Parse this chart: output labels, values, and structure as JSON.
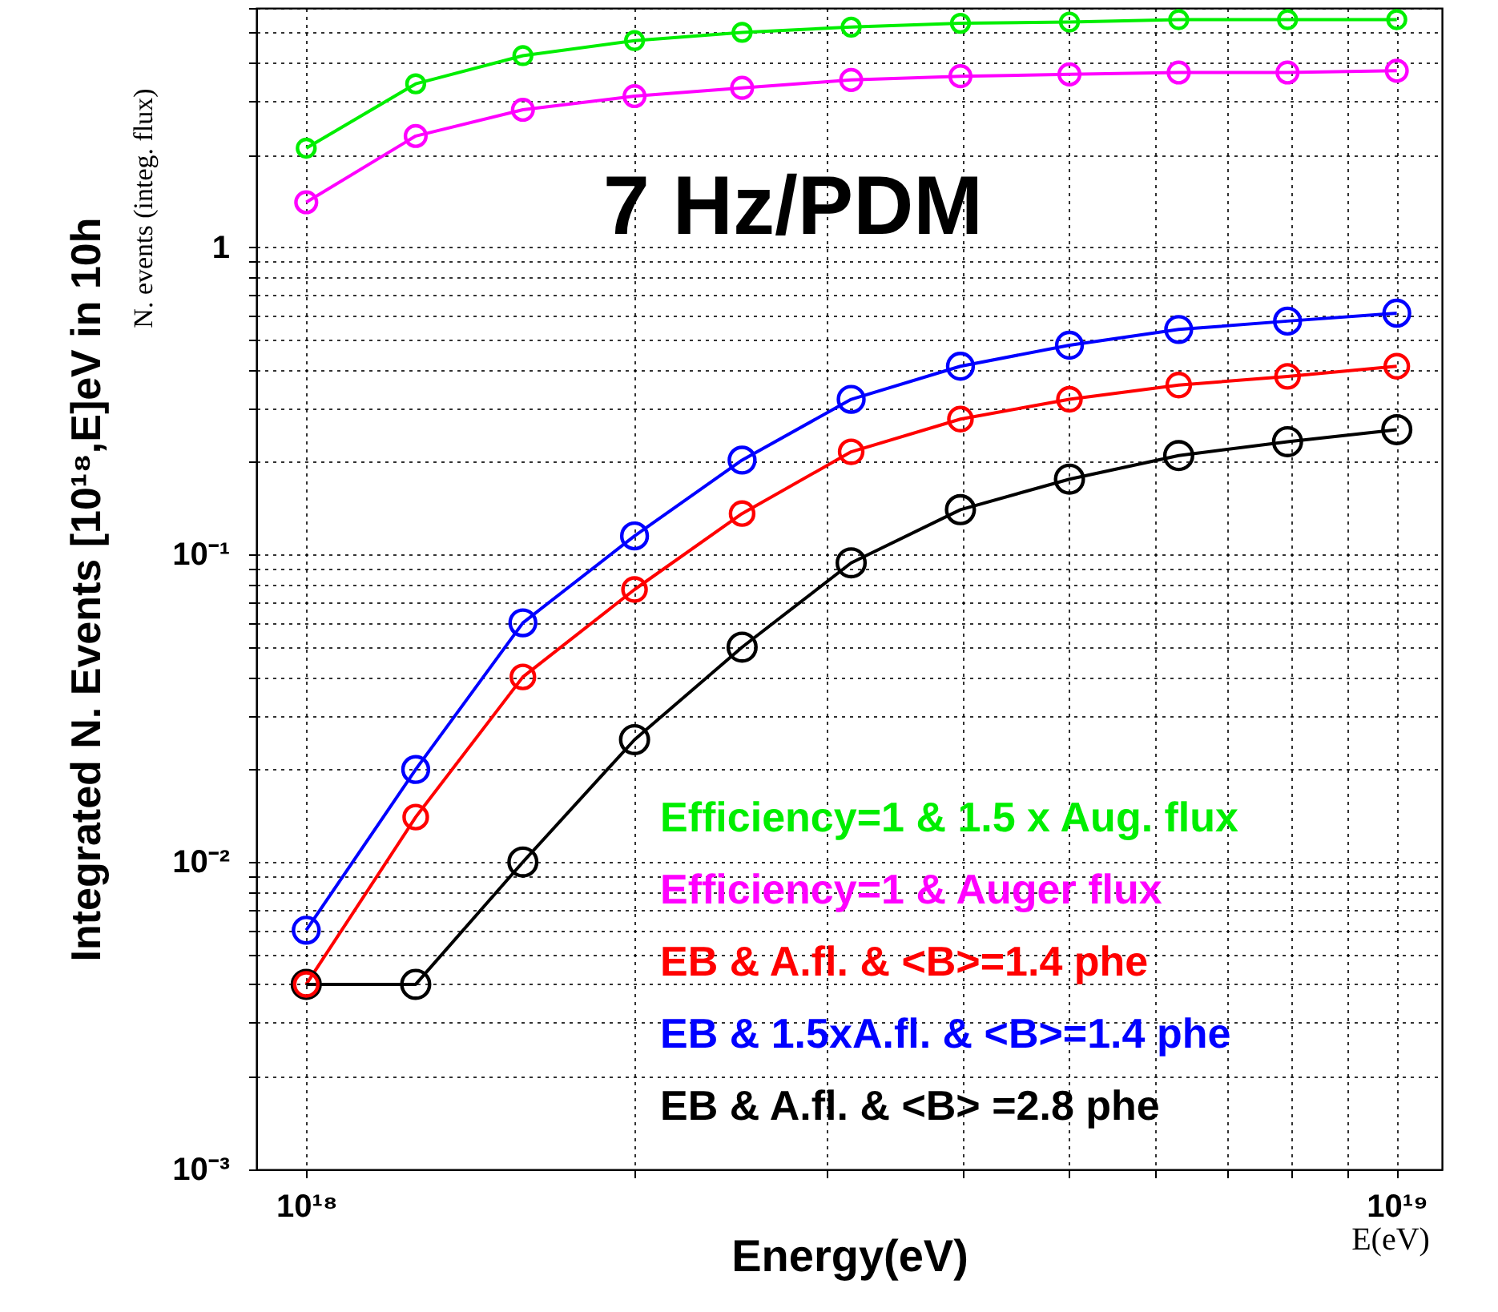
{
  "chart_data": {
    "type": "line",
    "xlabel": "Energy(eV)",
    "ylabel": "Integrated N. Events [10¹⁸,E]eV in 10h",
    "annotations": [
      "7 Hz/PDM",
      "N. events (integ. flux)",
      "E(eV)"
    ],
    "x": [
      1e+18,
      1.26e+18,
      1.58e+18,
      2e+18,
      2.51e+18,
      3.16e+18,
      3.98e+18,
      5.01e+18,
      6.31e+18,
      7.94e+18,
      1e+19
    ],
    "series": [
      {
        "name": "Efficiency=1 & 1.5 x Aug. flux",
        "color": "#00ee00",
        "values": [
          2.1,
          3.4,
          4.2,
          4.7,
          5.0,
          5.2,
          5.35,
          5.4,
          5.5,
          5.5,
          5.5
        ]
      },
      {
        "name": "Efficiency=1 & Auger flux",
        "color": "#ff00ff",
        "values": [
          1.4,
          2.3,
          2.8,
          3.1,
          3.3,
          3.5,
          3.6,
          3.65,
          3.7,
          3.7,
          3.75
        ]
      },
      {
        "name": "EB & A.fl. & <B>=1.4 phe",
        "color": "#ff0000",
        "values": [
          0.004,
          0.014,
          0.04,
          0.077,
          0.136,
          0.216,
          0.276,
          0.32,
          0.356,
          0.38,
          0.41
        ]
      },
      {
        "name": "EB & 1.5xA.fl. & <B>=1.4 phe",
        "color": "#0000ff",
        "values": [
          0.006,
          0.02,
          0.06,
          0.115,
          0.203,
          0.32,
          0.41,
          0.48,
          0.54,
          0.575,
          0.61
        ]
      },
      {
        "name": "EB & A.fl. & <B> =2.8 phe",
        "color": "#000000",
        "values": [
          0.004,
          0.004,
          0.01,
          0.025,
          0.05,
          0.094,
          0.14,
          0.176,
          0.21,
          0.233,
          0.255
        ]
      }
    ],
    "log": "xy",
    "xlim": [
      9e+17,
      1.1e+19
    ],
    "ylim": [
      0.001,
      6
    ],
    "xticks": [
      {
        "value": 1e+18,
        "label": "10¹⁸"
      },
      {
        "value": 2e+18,
        "label": null
      },
      {
        "value": 3e+18,
        "label": null
      },
      {
        "value": 4e+18,
        "label": null
      },
      {
        "value": 5e+18,
        "label": null
      },
      {
        "value": 6e+18,
        "label": null
      },
      {
        "value": 7e+18,
        "label": null
      },
      {
        "value": 8e+18,
        "label": null
      },
      {
        "value": 9e+18,
        "label": null
      },
      {
        "value": 1e+19,
        "label": "10¹⁹"
      }
    ],
    "yticks": [
      {
        "value": 0.001,
        "label": "10⁻³"
      },
      {
        "value": 0.002,
        "label": null
      },
      {
        "value": 0.003,
        "label": null
      },
      {
        "value": 0.004,
        "label": null
      },
      {
        "value": 0.005,
        "label": null
      },
      {
        "value": 0.006,
        "label": null
      },
      {
        "value": 0.007,
        "label": null
      },
      {
        "value": 0.008,
        "label": null
      },
      {
        "value": 0.009,
        "label": null
      },
      {
        "value": 0.01,
        "label": "10⁻²"
      },
      {
        "value": 0.02,
        "label": null
      },
      {
        "value": 0.03,
        "label": null
      },
      {
        "value": 0.04,
        "label": null
      },
      {
        "value": 0.05,
        "label": null
      },
      {
        "value": 0.06,
        "label": null
      },
      {
        "value": 0.07,
        "label": null
      },
      {
        "value": 0.08,
        "label": null
      },
      {
        "value": 0.09,
        "label": null
      },
      {
        "value": 0.1,
        "label": "10⁻¹"
      },
      {
        "value": 0.2,
        "label": null
      },
      {
        "value": 0.3,
        "label": null
      },
      {
        "value": 0.4,
        "label": null
      },
      {
        "value": 0.5,
        "label": null
      },
      {
        "value": 0.6,
        "label": null
      },
      {
        "value": 0.7,
        "label": null
      },
      {
        "value": 0.8,
        "label": null
      },
      {
        "value": 0.9,
        "label": null
      },
      1,
      {
        "value": 2,
        "label": null
      },
      {
        "value": 3,
        "label": null
      },
      {
        "value": 4,
        "label": null
      },
      {
        "value": 5,
        "label": null
      },
      {
        "value": 6,
        "label": null
      }
    ],
    "grid": true,
    "legend": "bottom right",
    "marker": "circle"
  }
}
